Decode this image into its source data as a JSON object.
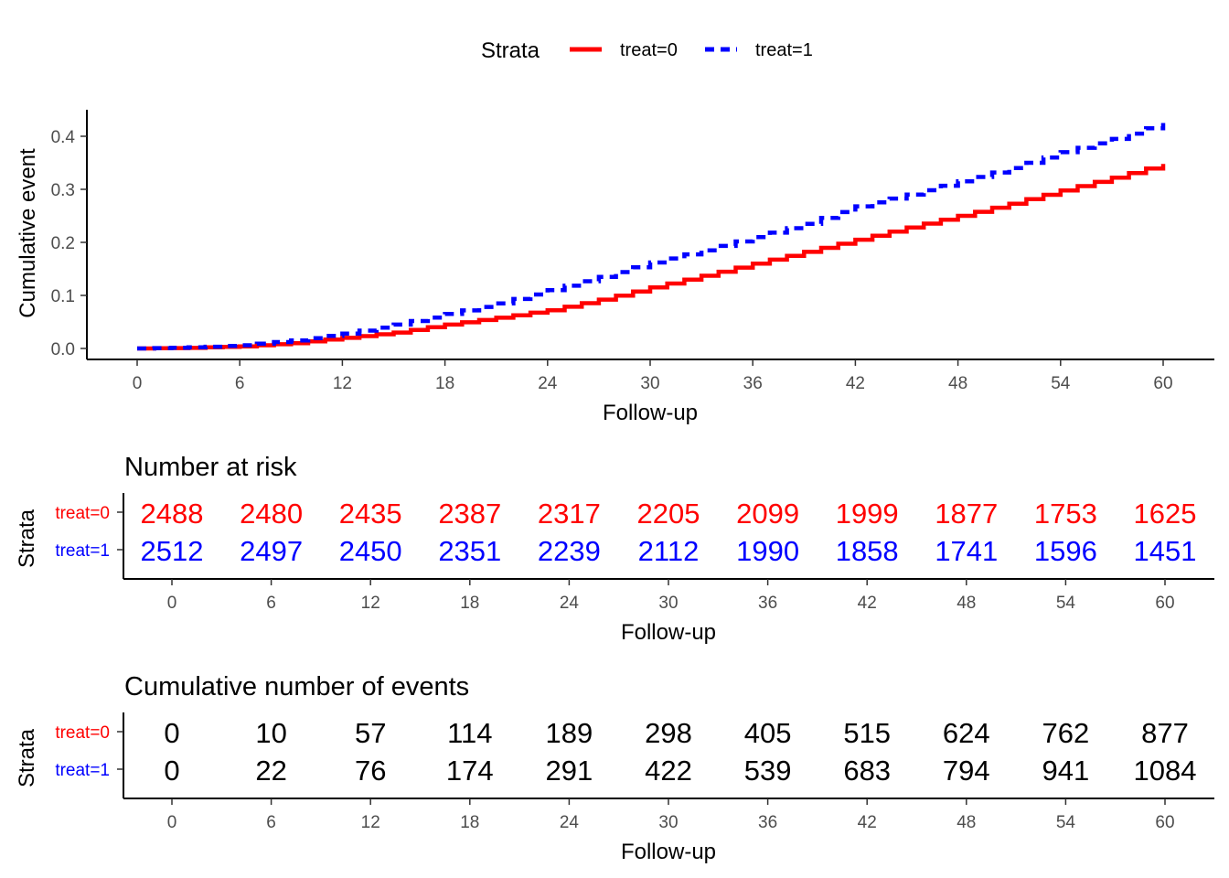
{
  "legend": {
    "title": "Strata",
    "entries": [
      {
        "label": "treat=0",
        "color": "#ff0000",
        "style": "solid"
      },
      {
        "label": "treat=1",
        "color": "#0000ff",
        "style": "dashed"
      }
    ]
  },
  "chart_data": [
    {
      "type": "line",
      "chart_kind": "step",
      "title": "",
      "xlabel": "Follow-up",
      "ylabel": "Cumulative event",
      "xlim": [
        0,
        60
      ],
      "ylim": [
        0,
        0.43
      ],
      "xticks": [
        "0",
        "6",
        "12",
        "18",
        "24",
        "30",
        "36",
        "42",
        "48",
        "54",
        "60"
      ],
      "yticks": [
        "0.0",
        "0.1",
        "0.2",
        "0.3",
        "0.4"
      ],
      "legend_position": "top",
      "grid": false,
      "series": [
        {
          "name": "treat=0",
          "color": "#ff0000",
          "x": [
            0,
            3,
            6,
            9,
            12,
            15,
            18,
            21,
            24,
            27,
            30,
            33,
            36,
            39,
            42,
            45,
            48,
            51,
            54,
            57,
            60
          ],
          "y": [
            0,
            0.001,
            0.004,
            0.01,
            0.02,
            0.03,
            0.045,
            0.058,
            0.072,
            0.092,
            0.115,
            0.137,
            0.16,
            0.182,
            0.205,
            0.228,
            0.25,
            0.273,
            0.298,
            0.322,
            0.348
          ]
        },
        {
          "name": "treat=1",
          "color": "#0000ff",
          "x": [
            0,
            3,
            6,
            9,
            12,
            15,
            18,
            21,
            24,
            27,
            30,
            33,
            36,
            39,
            42,
            45,
            48,
            51,
            54,
            57,
            60
          ],
          "y": [
            0,
            0.002,
            0.006,
            0.015,
            0.028,
            0.045,
            0.065,
            0.085,
            0.11,
            0.135,
            0.162,
            0.185,
            0.21,
            0.235,
            0.268,
            0.29,
            0.315,
            0.34,
            0.37,
            0.395,
            0.425
          ]
        }
      ]
    },
    {
      "type": "table",
      "title": "Number at risk",
      "xlabel": "Follow-up",
      "ylabel": "Strata",
      "xticks": [
        "0",
        "6",
        "12",
        "18",
        "24",
        "30",
        "36",
        "42",
        "48",
        "54",
        "60"
      ],
      "rows": [
        {
          "label": "treat=0",
          "color": "#ff0000",
          "value_color": "#ff0000",
          "values": [
            "2488",
            "2480",
            "2435",
            "2387",
            "2317",
            "2205",
            "2099",
            "1999",
            "1877",
            "1753",
            "1625"
          ]
        },
        {
          "label": "treat=1",
          "color": "#0000ff",
          "value_color": "#0000ff",
          "values": [
            "2512",
            "2497",
            "2450",
            "2351",
            "2239",
            "2112",
            "1990",
            "1858",
            "1741",
            "1596",
            "1451"
          ]
        }
      ]
    },
    {
      "type": "table",
      "title": "Cumulative number of events",
      "xlabel": "Follow-up",
      "ylabel": "Strata",
      "xticks": [
        "0",
        "6",
        "12",
        "18",
        "24",
        "30",
        "36",
        "42",
        "48",
        "54",
        "60"
      ],
      "rows": [
        {
          "label": "treat=0",
          "color": "#ff0000",
          "value_color": "#000000",
          "values": [
            "0",
            "10",
            "57",
            "114",
            "189",
            "298",
            "405",
            "515",
            "624",
            "762",
            "877"
          ]
        },
        {
          "label": "treat=1",
          "color": "#0000ff",
          "value_color": "#000000",
          "values": [
            "0",
            "22",
            "76",
            "174",
            "291",
            "422",
            "539",
            "683",
            "794",
            "941",
            "1084"
          ]
        }
      ]
    }
  ]
}
